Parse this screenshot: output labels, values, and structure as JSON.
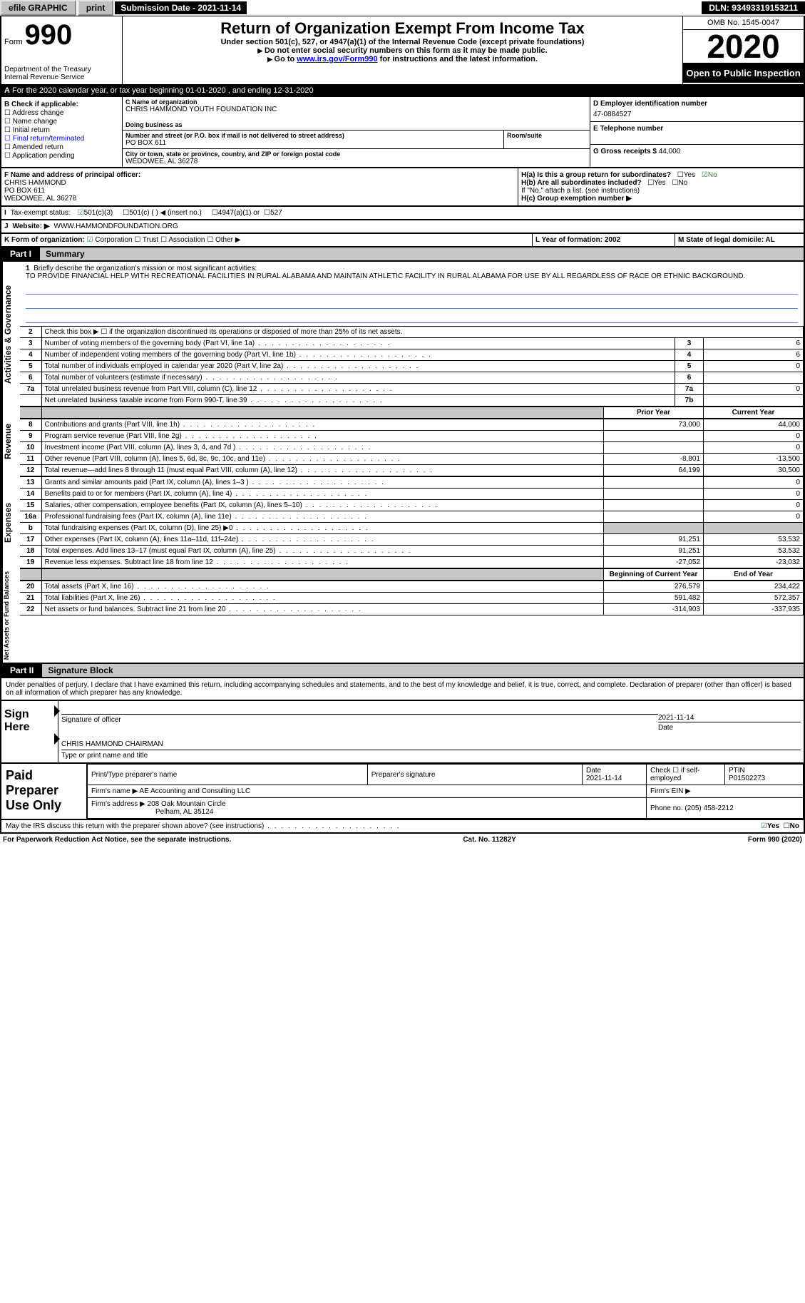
{
  "topbar": {
    "efile_label": "efile GRAPHIC",
    "print_label": "print",
    "sub_date_label": "Submission Date - 2021-11-14",
    "dln_label": "DLN: 93493319153211"
  },
  "header": {
    "form_word": "Form",
    "form_num": "990",
    "dept": "Department of the Treasury",
    "irs": "Internal Revenue Service",
    "title": "Return of Organization Exempt From Income Tax",
    "sub1": "Under section 501(c), 527, or 4947(a)(1) of the Internal Revenue Code (except private foundations)",
    "sub2": "Do not enter social security numbers on this form as it may be made public.",
    "sub3_pre": "Go to ",
    "sub3_link": "www.irs.gov/Form990",
    "sub3_post": " for instructions and the latest information.",
    "omb": "OMB No. 1545-0047",
    "year": "2020",
    "open": "Open to Public Inspection"
  },
  "period": "For the 2020 calendar year, or tax year beginning 01-01-2020    , and ending 12-31-2020",
  "checkB": {
    "heading": "B Check if applicable:",
    "addr": "Address change",
    "name": "Name change",
    "init": "Initial return",
    "final": "Final return/terminated",
    "amend": "Amended return",
    "app": "Application pending"
  },
  "nameblock": {
    "c_label": "C Name of organization",
    "org_name": "CHRIS HAMMOND YOUTH FOUNDATION INC",
    "dba_label": "Doing business as",
    "street_label": "Number and street (or P.O. box if mail is not delivered to street address)",
    "street": "PO BOX 611",
    "room_label": "Room/suite",
    "city_label": "City or town, state or province, country, and ZIP or foreign postal code",
    "city": "WEDOWEE, AL  36278"
  },
  "ir": {
    "d_label": "D Employer identification number",
    "ein": "47-0884527",
    "e_label": "E Telephone number",
    "g_label": "G Gross receipts $",
    "g_val": "44,000"
  },
  "officer": {
    "f_label": "F  Name and address of principal officer:",
    "name": "CHRIS HAMMOND",
    "street": "PO BOX 611",
    "city": "WEDOWEE, AL  36278"
  },
  "hblock": {
    "ha": "H(a)  Is this a group return for subordinates?",
    "hb": "H(b)  Are all subordinates included?",
    "hb_note": "If \"No,\" attach a list. (see instructions)",
    "hc": "H(c)  Group exemption number ▶"
  },
  "yesno": {
    "yes": "Yes",
    "no": "No"
  },
  "taxexempt": {
    "i_label": "I",
    "label": "Tax-exempt status:",
    "c3": "501(c)(3)",
    "cblank": "501(c) (  ) ◀ (insert no.)",
    "a1": "4947(a)(1) or",
    "s527": "527"
  },
  "website": {
    "j_label": "J",
    "label": "Website: ▶",
    "url": "WWW.HAMMONDFOUNDATION.ORG"
  },
  "klm": {
    "k": "K Form of organization:",
    "corp": "Corporation",
    "trust": "Trust",
    "assoc": "Association",
    "other": "Other ▶",
    "l": "L Year of formation: 2002",
    "m": "M State of legal domicile: AL"
  },
  "part1": {
    "tab": "Part I",
    "title": "Summary"
  },
  "mission": {
    "num": "1",
    "prompt": "Briefly describe the organization's mission or most significant activities:",
    "text": "TO PROVIDE FINANCIAL HELP WITH RECREATIONAL FACILITIES IN RURAL ALABAMA AND MAINTAIN ATHLETIC FACILITY IN RURAL ALABAMA FOR USE BY ALL REGARDLESS OF RACE OR ETHNIC BACKGROUND."
  },
  "gov_rows": [
    {
      "n": "2",
      "t": "Check this box ▶ ☐  if the organization discontinued its operations or disposed of more than 25% of its net assets.",
      "idx": "",
      "v": ""
    },
    {
      "n": "3",
      "t": "Number of voting members of the governing body (Part VI, line 1a)",
      "idx": "3",
      "v": "6"
    },
    {
      "n": "4",
      "t": "Number of independent voting members of the governing body (Part VI, line 1b)",
      "idx": "4",
      "v": "6"
    },
    {
      "n": "5",
      "t": "Total number of individuals employed in calendar year 2020 (Part V, line 2a)",
      "idx": "5",
      "v": "0"
    },
    {
      "n": "6",
      "t": "Total number of volunteers (estimate if necessary)",
      "idx": "6",
      "v": ""
    },
    {
      "n": "7a",
      "t": "Total unrelated business revenue from Part VIII, column (C), line 12",
      "idx": "7a",
      "v": "0"
    },
    {
      "n": "",
      "t": "Net unrelated business taxable income from Form 990-T, line 39",
      "idx": "7b",
      "v": ""
    }
  ],
  "col_headers": {
    "prior": "Prior Year",
    "current": "Current Year"
  },
  "rev_rows": [
    {
      "n": "8",
      "t": "Contributions and grants (Part VIII, line 1h)",
      "p": "73,000",
      "c": "44,000"
    },
    {
      "n": "9",
      "t": "Program service revenue (Part VIII, line 2g)",
      "p": "",
      "c": "0"
    },
    {
      "n": "10",
      "t": "Investment income (Part VIII, column (A), lines 3, 4, and 7d )",
      "p": "",
      "c": "0"
    },
    {
      "n": "11",
      "t": "Other revenue (Part VIII, column (A), lines 5, 6d, 8c, 9c, 10c, and 11e)",
      "p": "-8,801",
      "c": "-13,500"
    },
    {
      "n": "12",
      "t": "Total revenue—add lines 8 through 11 (must equal Part VIII, column (A), line 12)",
      "p": "64,199",
      "c": "30,500"
    }
  ],
  "exp_rows": [
    {
      "n": "13",
      "t": "Grants and similar amounts paid (Part IX, column (A), lines 1–3 )",
      "p": "",
      "c": "0"
    },
    {
      "n": "14",
      "t": "Benefits paid to or for members (Part IX, column (A), line 4)",
      "p": "",
      "c": "0"
    },
    {
      "n": "15",
      "t": "Salaries, other compensation, employee benefits (Part IX, column (A), lines 5–10)",
      "p": "",
      "c": "0"
    },
    {
      "n": "16a",
      "t": "Professional fundraising fees (Part IX, column (A), line 11e)",
      "p": "",
      "c": "0"
    },
    {
      "n": "b",
      "t": "Total fundraising expenses (Part IX, column (D), line 25) ▶0",
      "p": "GREY",
      "c": "GREY"
    },
    {
      "n": "17",
      "t": "Other expenses (Part IX, column (A), lines 11a–11d, 11f–24e)",
      "p": "91,251",
      "c": "53,532"
    },
    {
      "n": "18",
      "t": "Total expenses. Add lines 13–17 (must equal Part IX, column (A), line 25)",
      "p": "91,251",
      "c": "53,532"
    },
    {
      "n": "19",
      "t": "Revenue less expenses. Subtract line 18 from line 12",
      "p": "-27,052",
      "c": "-23,032"
    }
  ],
  "na_headers": {
    "begin": "Beginning of Current Year",
    "end": "End of Year"
  },
  "na_rows": [
    {
      "n": "20",
      "t": "Total assets (Part X, line 16)",
      "p": "276,579",
      "c": "234,422"
    },
    {
      "n": "21",
      "t": "Total liabilities (Part X, line 26)",
      "p": "591,482",
      "c": "572,357"
    },
    {
      "n": "22",
      "t": "Net assets or fund balances. Subtract line 21 from line 20",
      "p": "-314,903",
      "c": "-337,935"
    }
  ],
  "part2": {
    "tab": "Part II",
    "title": "Signature Block"
  },
  "declaration": "Under penalties of perjury, I declare that I have examined this return, including accompanying schedules and statements, and to the best of my knowledge and belief, it is true, correct, and complete. Declaration of preparer (other than officer) is based on all information of which preparer has any knowledge.",
  "sign": {
    "here": "Sign Here",
    "sig_label": "Signature of officer",
    "date_label": "Date",
    "date_val": "2021-11-14",
    "name": "CHRIS HAMMOND  CHAIRMAN",
    "name_label": "Type or print name and title"
  },
  "preparer": {
    "label": "Paid Preparer Use Only",
    "h_print": "Print/Type preparer's name",
    "h_sig": "Preparer's signature",
    "h_date": "Date",
    "date_val": "2021-11-14",
    "h_check": "Check ☐ if self-employed",
    "h_ptin": "PTIN",
    "ptin": "P01502273",
    "firm_name_lbl": "Firm's name    ▶",
    "firm_name": "AE Accounting and Consulting LLC",
    "firm_ein_lbl": "Firm's EIN ▶",
    "firm_addr_lbl": "Firm's address ▶",
    "firm_addr1": "208 Oak Mountain Circle",
    "firm_addr2": "Pelham, AL  35124",
    "phone_lbl": "Phone no.",
    "phone": "(205) 458-2212"
  },
  "discuss": {
    "text": "May the IRS discuss this return with the preparer shown above? (see instructions)",
    "yes_checked": true
  },
  "footer": {
    "left": "For Paperwork Reduction Act Notice, see the separate instructions.",
    "mid": "Cat. No. 11282Y",
    "right": "Form 990 (2020)"
  },
  "vlabels": {
    "gov": "Activities & Governance",
    "rev": "Revenue",
    "exp": "Expenses",
    "na": "Net Assets or Fund Balances"
  }
}
